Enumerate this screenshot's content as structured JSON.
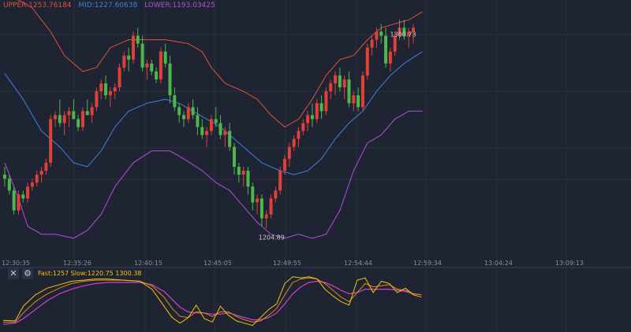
{
  "legend": [
    {
      "text": "UPPER:1253.76184",
      "color": "#e0533c"
    },
    {
      "text": "MID:1227.60638",
      "color": "#3f7fe0"
    },
    {
      "text": "LOWER:1193.03425",
      "color": "#b04fd8"
    }
  ],
  "indicator": {
    "close_icon": "close-icon",
    "settings_icon": "gear-icon",
    "legend_text": "Fast:1257  Slow:1220.75  1300.38",
    "colors": {
      "k": "#f5c400",
      "d": "#e08a20",
      "j": "#d040d0"
    }
  },
  "colors": {
    "background": "#1f2432",
    "grid": "#2b3040",
    "up": "#e0403a",
    "down": "#4cb84c",
    "upper_band": "#e0533c",
    "mid_band": "#3f7fe0",
    "lower_band": "#b04fd8",
    "axis_text": "#8a91a3"
  },
  "chart_data": {
    "type": "candlestick",
    "time_labels": [
      "12:30:35",
      "12:35:26",
      "12:40:15",
      "12:45:05",
      "12:49:55",
      "12:54:44",
      "12:59:34",
      "13:04:24",
      "13:09:13"
    ],
    "price_labels": [
      {
        "value": 1300.73,
        "label": "1300.73"
      },
      {
        "value": 1204.89,
        "label": "1204.89"
      }
    ],
    "y_range": [
      1190,
      1320
    ],
    "candles": [
      [
        1232,
        1236,
        1226,
        1230
      ],
      [
        1230,
        1232,
        1222,
        1224
      ],
      [
        1224,
        1226,
        1212,
        1214
      ],
      [
        1214,
        1224,
        1212,
        1222
      ],
      [
        1222,
        1224,
        1218,
        1220
      ],
      [
        1220,
        1228,
        1218,
        1226
      ],
      [
        1226,
        1230,
        1224,
        1228
      ],
      [
        1228,
        1234,
        1226,
        1232
      ],
      [
        1232,
        1236,
        1228,
        1234
      ],
      [
        1234,
        1240,
        1232,
        1238
      ],
      [
        1238,
        1262,
        1236,
        1260
      ],
      [
        1260,
        1264,
        1256,
        1262
      ],
      [
        1262,
        1270,
        1256,
        1258
      ],
      [
        1258,
        1264,
        1252,
        1262
      ],
      [
        1262,
        1266,
        1256,
        1264
      ],
      [
        1264,
        1270,
        1260,
        1260
      ],
      [
        1260,
        1262,
        1254,
        1256
      ],
      [
        1256,
        1266,
        1254,
        1264
      ],
      [
        1264,
        1270,
        1262,
        1262
      ],
      [
        1262,
        1268,
        1258,
        1266
      ],
      [
        1266,
        1276,
        1264,
        1274
      ],
      [
        1274,
        1280,
        1270,
        1278
      ],
      [
        1278,
        1282,
        1270,
        1272
      ],
      [
        1272,
        1276,
        1266,
        1274
      ],
      [
        1274,
        1278,
        1270,
        1276
      ],
      [
        1276,
        1288,
        1274,
        1286
      ],
      [
        1286,
        1294,
        1284,
        1292
      ],
      [
        1292,
        1296,
        1284,
        1290
      ],
      [
        1290,
        1304,
        1288,
        1302
      ],
      [
        1302,
        1306,
        1296,
        1298
      ],
      [
        1298,
        1302,
        1284,
        1286
      ],
      [
        1286,
        1290,
        1280,
        1288
      ],
      [
        1288,
        1290,
        1282,
        1284
      ],
      [
        1284,
        1286,
        1278,
        1280
      ],
      [
        1280,
        1296,
        1278,
        1294
      ],
      [
        1294,
        1298,
        1286,
        1288
      ],
      [
        1288,
        1292,
        1268,
        1272
      ],
      [
        1272,
        1276,
        1264,
        1266
      ],
      [
        1266,
        1268,
        1258,
        1262
      ],
      [
        1262,
        1264,
        1256,
        1260
      ],
      [
        1260,
        1268,
        1258,
        1266
      ],
      [
        1266,
        1270,
        1260,
        1262
      ],
      [
        1262,
        1266,
        1252,
        1256
      ],
      [
        1256,
        1260,
        1250,
        1252
      ],
      [
        1252,
        1256,
        1246,
        1254
      ],
      [
        1254,
        1262,
        1252,
        1260
      ],
      [
        1260,
        1266,
        1256,
        1258
      ],
      [
        1258,
        1262,
        1250,
        1252
      ],
      [
        1252,
        1256,
        1246,
        1254
      ],
      [
        1254,
        1258,
        1244,
        1246
      ],
      [
        1246,
        1248,
        1232,
        1236
      ],
      [
        1236,
        1238,
        1228,
        1232
      ],
      [
        1232,
        1236,
        1226,
        1234
      ],
      [
        1234,
        1236,
        1222,
        1226
      ],
      [
        1226,
        1228,
        1214,
        1218
      ],
      [
        1218,
        1222,
        1212,
        1220
      ],
      [
        1220,
        1222,
        1206,
        1210
      ],
      [
        1210,
        1214,
        1205,
        1212
      ],
      [
        1212,
        1222,
        1210,
        1220
      ],
      [
        1220,
        1226,
        1218,
        1224
      ],
      [
        1224,
        1236,
        1222,
        1234
      ],
      [
        1234,
        1242,
        1232,
        1240
      ],
      [
        1240,
        1248,
        1236,
        1246
      ],
      [
        1246,
        1252,
        1244,
        1250
      ],
      [
        1250,
        1256,
        1246,
        1254
      ],
      [
        1254,
        1260,
        1252,
        1258
      ],
      [
        1258,
        1264,
        1254,
        1262
      ],
      [
        1262,
        1268,
        1256,
        1260
      ],
      [
        1260,
        1270,
        1258,
        1268
      ],
      [
        1268,
        1272,
        1260,
        1264
      ],
      [
        1264,
        1276,
        1262,
        1274
      ],
      [
        1274,
        1280,
        1270,
        1278
      ],
      [
        1278,
        1284,
        1272,
        1282
      ],
      [
        1282,
        1286,
        1274,
        1276
      ],
      [
        1276,
        1282,
        1270,
        1280
      ],
      [
        1280,
        1284,
        1266,
        1268
      ],
      [
        1268,
        1274,
        1264,
        1272
      ],
      [
        1272,
        1276,
        1264,
        1266
      ],
      [
        1266,
        1284,
        1264,
        1282
      ],
      [
        1282,
        1298,
        1280,
        1296
      ],
      [
        1296,
        1302,
        1292,
        1300
      ],
      [
        1300,
        1306,
        1296,
        1304
      ],
      [
        1304,
        1308,
        1298,
        1302
      ],
      [
        1302,
        1306,
        1286,
        1288
      ],
      [
        1288,
        1296,
        1284,
        1294
      ],
      [
        1294,
        1304,
        1292,
        1302
      ],
      [
        1302,
        1310,
        1300,
        1306
      ],
      [
        1306,
        1310,
        1300,
        1302
      ],
      [
        1302,
        1306,
        1296,
        1304
      ],
      [
        1304,
        1308,
        1298,
        1306
      ]
    ],
    "upper_band": [
      [
        0,
        1321
      ],
      [
        3,
        1320
      ],
      [
        6,
        1316
      ],
      [
        10,
        1304
      ],
      [
        13,
        1292
      ],
      [
        17,
        1284
      ],
      [
        20,
        1286
      ],
      [
        23,
        1296
      ],
      [
        27,
        1300
      ],
      [
        30,
        1300
      ],
      [
        35,
        1300
      ],
      [
        40,
        1298
      ],
      [
        43,
        1294
      ],
      [
        45,
        1286
      ],
      [
        48,
        1278
      ],
      [
        52,
        1274
      ],
      [
        55,
        1270
      ],
      [
        58,
        1262
      ],
      [
        61,
        1256
      ],
      [
        64,
        1260
      ],
      [
        67,
        1270
      ],
      [
        70,
        1282
      ],
      [
        73,
        1290
      ],
      [
        76,
        1292
      ],
      [
        79,
        1300
      ],
      [
        82,
        1306
      ],
      [
        85,
        1308
      ],
      [
        88,
        1310
      ],
      [
        91,
        1314
      ]
    ],
    "mid_band": [
      [
        0,
        1283
      ],
      [
        4,
        1270
      ],
      [
        8,
        1254
      ],
      [
        12,
        1246
      ],
      [
        15,
        1238
      ],
      [
        18,
        1236
      ],
      [
        21,
        1244
      ],
      [
        24,
        1256
      ],
      [
        27,
        1264
      ],
      [
        31,
        1268
      ],
      [
        35,
        1270
      ],
      [
        38,
        1268
      ],
      [
        41,
        1264
      ],
      [
        44,
        1260
      ],
      [
        47,
        1256
      ],
      [
        50,
        1250
      ],
      [
        53,
        1244
      ],
      [
        56,
        1238
      ],
      [
        60,
        1234
      ],
      [
        63,
        1232
      ],
      [
        66,
        1234
      ],
      [
        69,
        1240
      ],
      [
        72,
        1250
      ],
      [
        75,
        1258
      ],
      [
        78,
        1264
      ],
      [
        81,
        1274
      ],
      [
        84,
        1282
      ],
      [
        87,
        1288
      ],
      [
        91,
        1294
      ]
    ],
    "lower_band": [
      [
        0,
        1238
      ],
      [
        3,
        1220
      ],
      [
        5,
        1206
      ],
      [
        8,
        1202
      ],
      [
        11,
        1202
      ],
      [
        15,
        1200
      ],
      [
        18,
        1204
      ],
      [
        21,
        1212
      ],
      [
        24,
        1226
      ],
      [
        28,
        1238
      ],
      [
        32,
        1244
      ],
      [
        36,
        1244
      ],
      [
        39,
        1240
      ],
      [
        43,
        1234
      ],
      [
        46,
        1228
      ],
      [
        49,
        1224
      ],
      [
        52,
        1216
      ],
      [
        55,
        1208
      ],
      [
        58,
        1202
      ],
      [
        61,
        1200
      ],
      [
        64,
        1202
      ],
      [
        67,
        1200
      ],
      [
        70,
        1202
      ],
      [
        73,
        1214
      ],
      [
        76,
        1234
      ],
      [
        79,
        1248
      ],
      [
        82,
        1252
      ],
      [
        85,
        1260
      ],
      [
        88,
        1264
      ],
      [
        91,
        1264
      ]
    ],
    "oscillator": {
      "range": [
        0,
        100
      ],
      "k": [
        [
          0,
          15
        ],
        [
          3,
          14
        ],
        [
          5,
          40
        ],
        [
          8,
          60
        ],
        [
          11,
          72
        ],
        [
          14,
          78
        ],
        [
          17,
          84
        ],
        [
          20,
          86
        ],
        [
          23,
          88
        ],
        [
          26,
          88
        ],
        [
          30,
          86
        ],
        [
          34,
          84
        ],
        [
          37,
          70
        ],
        [
          40,
          40
        ],
        [
          42,
          20
        ],
        [
          44,
          10
        ],
        [
          46,
          20
        ],
        [
          48,
          42
        ],
        [
          50,
          18
        ],
        [
          52,
          12
        ],
        [
          54,
          40
        ],
        [
          56,
          24
        ],
        [
          58,
          14
        ],
        [
          60,
          10
        ],
        [
          62,
          6
        ],
        [
          64,
          20
        ],
        [
          66,
          34
        ],
        [
          68,
          44
        ],
        [
          70,
          80
        ],
        [
          72,
          92
        ],
        [
          74,
          90
        ],
        [
          76,
          92
        ],
        [
          78,
          88
        ],
        [
          80,
          70
        ],
        [
          82,
          58
        ],
        [
          84,
          48
        ],
        [
          86,
          42
        ],
        [
          88,
          86
        ],
        [
          90,
          90
        ],
        [
          92,
          64
        ],
        [
          94,
          84
        ],
        [
          96,
          80
        ],
        [
          98,
          64
        ],
        [
          100,
          72
        ],
        [
          102,
          60
        ],
        [
          104,
          56
        ]
      ],
      "d": [
        [
          0,
          12
        ],
        [
          3,
          12
        ],
        [
          5,
          28
        ],
        [
          8,
          48
        ],
        [
          11,
          62
        ],
        [
          14,
          72
        ],
        [
          17,
          80
        ],
        [
          20,
          84
        ],
        [
          23,
          86
        ],
        [
          26,
          86
        ],
        [
          30,
          86
        ],
        [
          34,
          84
        ],
        [
          37,
          76
        ],
        [
          40,
          56
        ],
        [
          42,
          36
        ],
        [
          44,
          22
        ],
        [
          46,
          20
        ],
        [
          48,
          30
        ],
        [
          50,
          28
        ],
        [
          52,
          22
        ],
        [
          54,
          30
        ],
        [
          56,
          30
        ],
        [
          58,
          22
        ],
        [
          60,
          16
        ],
        [
          62,
          12
        ],
        [
          64,
          14
        ],
        [
          66,
          24
        ],
        [
          68,
          36
        ],
        [
          70,
          60
        ],
        [
          72,
          82
        ],
        [
          74,
          88
        ],
        [
          76,
          90
        ],
        [
          78,
          88
        ],
        [
          80,
          80
        ],
        [
          82,
          68
        ],
        [
          84,
          56
        ],
        [
          86,
          48
        ],
        [
          88,
          64
        ],
        [
          90,
          80
        ],
        [
          92,
          74
        ],
        [
          94,
          76
        ],
        [
          96,
          78
        ],
        [
          98,
          70
        ],
        [
          100,
          68
        ],
        [
          102,
          62
        ],
        [
          104,
          60
        ]
      ],
      "j": [
        [
          0,
          8
        ],
        [
          3,
          10
        ],
        [
          5,
          18
        ],
        [
          8,
          34
        ],
        [
          11,
          50
        ],
        [
          14,
          62
        ],
        [
          17,
          70
        ],
        [
          20,
          76
        ],
        [
          23,
          80
        ],
        [
          26,
          82
        ],
        [
          30,
          82
        ],
        [
          34,
          82
        ],
        [
          37,
          78
        ],
        [
          40,
          66
        ],
        [
          42,
          52
        ],
        [
          44,
          38
        ],
        [
          46,
          30
        ],
        [
          48,
          28
        ],
        [
          50,
          28
        ],
        [
          52,
          26
        ],
        [
          54,
          26
        ],
        [
          56,
          28
        ],
        [
          58,
          24
        ],
        [
          60,
          20
        ],
        [
          62,
          16
        ],
        [
          64,
          16
        ],
        [
          66,
          20
        ],
        [
          68,
          28
        ],
        [
          70,
          44
        ],
        [
          72,
          62
        ],
        [
          74,
          74
        ],
        [
          76,
          82
        ],
        [
          78,
          84
        ],
        [
          80,
          82
        ],
        [
          82,
          76
        ],
        [
          84,
          68
        ],
        [
          86,
          62
        ],
        [
          88,
          64
        ],
        [
          90,
          70
        ],
        [
          92,
          70
        ],
        [
          94,
          70
        ],
        [
          96,
          70
        ],
        [
          98,
          68
        ],
        [
          100,
          66
        ],
        [
          102,
          62
        ],
        [
          104,
          60
        ]
      ]
    }
  }
}
